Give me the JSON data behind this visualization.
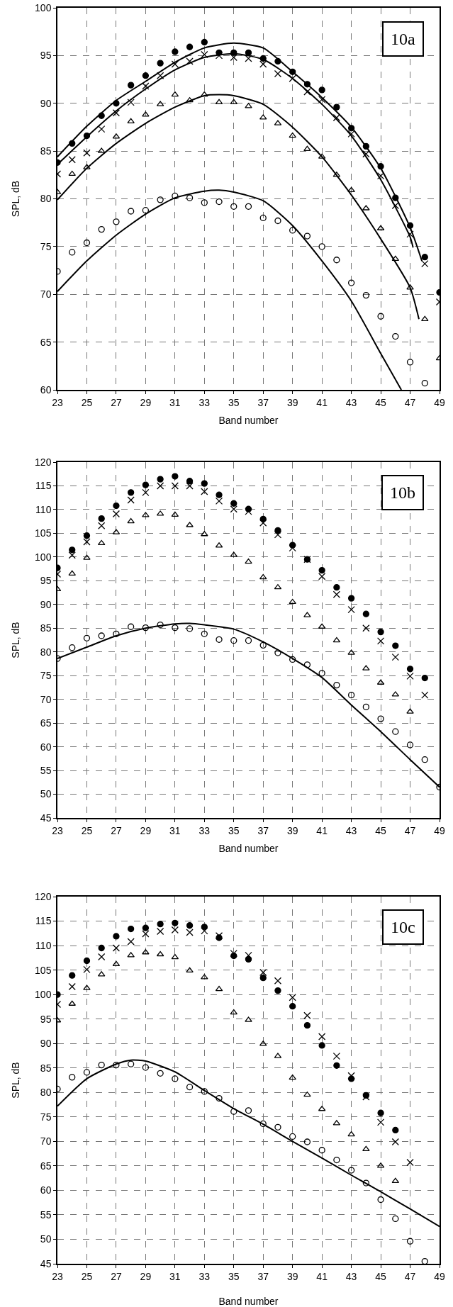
{
  "chart_data": [
    {
      "type": "scatter",
      "xlabel": "Band number",
      "ylabel": "SPL, dB",
      "annotations": [
        "10a"
      ],
      "xlim": [
        23,
        49
      ],
      "ylim": [
        60,
        100
      ],
      "xticks": [
        23,
        25,
        27,
        29,
        31,
        33,
        35,
        37,
        39,
        41,
        43,
        45,
        47,
        49
      ],
      "yticks": [
        60,
        65,
        70,
        75,
        80,
        85,
        90,
        95,
        100
      ],
      "grid": true,
      "x": [
        23,
        24,
        25,
        26,
        27,
        28,
        29,
        30,
        31,
        32,
        33,
        34,
        35,
        36,
        37,
        38,
        39,
        40,
        41,
        42,
        43,
        44,
        45,
        46,
        47,
        48,
        49
      ],
      "series": [
        {
          "type": "scatter",
          "marker": "circle",
          "color": "#000000",
          "values": [
            83.8,
            85.8,
            86.6,
            88.7,
            90.0,
            91.9,
            92.9,
            94.2,
            95.4,
            95.9,
            96.4,
            95.3,
            95.3,
            95.3,
            94.7,
            94.4,
            93.3,
            92.0,
            91.4,
            89.6,
            87.4,
            85.5,
            83.4,
            80.1,
            77.2,
            73.9,
            70.2
          ]
        },
        {
          "type": "scatter",
          "marker": "cross",
          "color": "#000000",
          "values": [
            82.6,
            84.1,
            84.8,
            87.3,
            89.0,
            90.1,
            91.8,
            92.9,
            94.1,
            94.4,
            95.1,
            95.0,
            94.8,
            94.7,
            94.1,
            93.1,
            92.6,
            91.2,
            90.4,
            88.5,
            86.8,
            84.7,
            82.4,
            79.3,
            76.3,
            73.2,
            69.2
          ]
        },
        {
          "type": "scatter",
          "marker": "triangle",
          "color": "#000000",
          "values": [
            80.7,
            82.6,
            83.3,
            85.0,
            86.5,
            88.1,
            88.8,
            89.9,
            90.9,
            90.3,
            90.9,
            90.1,
            90.1,
            89.7,
            88.5,
            87.9,
            86.6,
            85.2,
            84.4,
            82.5,
            80.9,
            79.0,
            76.9,
            73.7,
            70.7,
            67.4,
            63.3
          ]
        },
        {
          "type": "scatter",
          "marker": "circle-open",
          "color": "#000000",
          "values": [
            72.4,
            74.4,
            75.4,
            76.8,
            77.6,
            78.7,
            78.8,
            79.9,
            80.3,
            80.1,
            79.6,
            79.7,
            79.2,
            79.2,
            78.0,
            77.7,
            76.7,
            76.1,
            75.0,
            73.6,
            71.2,
            69.9,
            67.7,
            65.6,
            62.9,
            60.7,
            null
          ]
        },
        {
          "type": "line",
          "marker": "none",
          "color": "#000000",
          "x": [
            23,
            25,
            27,
            29,
            31,
            33,
            35,
            37,
            39,
            41,
            43,
            45,
            47,
            47.8
          ],
          "values": [
            84.4,
            87.6,
            90.3,
            92.3,
            94.3,
            95.8,
            96.3,
            95.8,
            93.3,
            90.6,
            87.5,
            83.2,
            77.0,
            73.5
          ]
        },
        {
          "type": "line",
          "marker": "none",
          "color": "#000000",
          "x": [
            23,
            25,
            27,
            29,
            31,
            33,
            35,
            37,
            39,
            41,
            43,
            45,
            47,
            47.2
          ],
          "values": [
            83.6,
            86.5,
            89.2,
            91.5,
            93.5,
            94.8,
            95.2,
            94.6,
            92.6,
            89.9,
            86.6,
            82.0,
            76.0,
            74.9
          ]
        },
        {
          "type": "line",
          "marker": "none",
          "color": "#000000",
          "x": [
            23,
            25,
            27,
            29,
            31,
            33,
            34,
            35,
            37,
            39,
            41,
            43,
            45,
            47,
            47.6
          ],
          "values": [
            79.9,
            83.2,
            85.8,
            87.9,
            89.6,
            90.8,
            90.9,
            90.8,
            89.9,
            87.5,
            84.4,
            80.4,
            75.8,
            70.7,
            67.4
          ]
        },
        {
          "type": "line",
          "marker": "none",
          "color": "#000000",
          "x": [
            23,
            25,
            27,
            29,
            31,
            33,
            34,
            35,
            37,
            39,
            41,
            43,
            45,
            46.4
          ],
          "values": [
            70.3,
            73.5,
            76.2,
            78.4,
            80.1,
            80.8,
            80.9,
            80.7,
            79.8,
            77.2,
            73.5,
            69.3,
            63.8,
            60.0
          ]
        }
      ]
    },
    {
      "type": "scatter",
      "xlabel": "Band number",
      "ylabel": "SPL, dB",
      "annotations": [
        "10b"
      ],
      "xlim": [
        23,
        49
      ],
      "ylim": [
        45,
        120
      ],
      "xticks": [
        23,
        25,
        27,
        29,
        31,
        33,
        35,
        37,
        39,
        41,
        43,
        45,
        47,
        49
      ],
      "yticks": [
        45,
        50,
        55,
        60,
        65,
        70,
        75,
        80,
        85,
        90,
        95,
        100,
        105,
        110,
        115,
        120
      ],
      "grid": true,
      "x": [
        23,
        24,
        25,
        26,
        27,
        28,
        29,
        30,
        31,
        32,
        33,
        34,
        35,
        36,
        37,
        38,
        39,
        40,
        41,
        42,
        43,
        44,
        45,
        46,
        47,
        48,
        49
      ],
      "series": [
        {
          "type": "scatter",
          "marker": "circle",
          "color": "#000000",
          "values": [
            97.7,
            101.5,
            104.5,
            108.1,
            110.8,
            113.6,
            115.2,
            116.4,
            117.0,
            116.0,
            115.5,
            113.1,
            111.3,
            110.1,
            108.0,
            105.6,
            102.5,
            99.5,
            97.2,
            93.6,
            91.3,
            88.0,
            84.2,
            81.3,
            76.4,
            74.5,
            null
          ]
        },
        {
          "type": "scatter",
          "marker": "cross",
          "color": "#000000",
          "values": [
            96.4,
            100.4,
            103.2,
            106.6,
            109.1,
            112.0,
            113.6,
            115.0,
            115.0,
            115.0,
            113.8,
            111.8,
            110.1,
            109.6,
            107.2,
            104.7,
            101.9,
            99.5,
            95.9,
            92.1,
            88.9,
            85.0,
            82.3,
            78.9,
            74.9,
            70.9,
            null
          ]
        },
        {
          "type": "scatter",
          "marker": "triangle",
          "color": "#000000",
          "values": [
            93.2,
            96.5,
            99.8,
            102.9,
            105.2,
            107.5,
            108.8,
            109.1,
            108.9,
            106.7,
            104.8,
            102.4,
            100.4,
            99.0,
            95.7,
            93.6,
            90.5,
            87.7,
            85.3,
            82.4,
            79.8,
            76.5,
            73.5,
            71.0,
            67.4,
            null,
            null
          ]
        },
        {
          "type": "scatter",
          "marker": "circle-open",
          "color": "#000000",
          "values": [
            78.6,
            80.9,
            82.9,
            83.4,
            83.8,
            85.3,
            85.1,
            85.7,
            85.1,
            84.9,
            83.8,
            82.6,
            82.4,
            82.4,
            81.4,
            79.8,
            78.4,
            77.3,
            75.5,
            73.0,
            70.9,
            68.4,
            65.9,
            63.2,
            60.4,
            57.3,
            51.5
          ]
        },
        {
          "type": "line",
          "marker": "none",
          "color": "#000000",
          "x": [
            23,
            25,
            27,
            29,
            31,
            32,
            33,
            35,
            37,
            39,
            41,
            43,
            45,
            47,
            49
          ],
          "values": [
            78.6,
            81.0,
            83.4,
            85.0,
            85.9,
            86.0,
            85.7,
            84.8,
            82.1,
            78.6,
            74.6,
            68.8,
            63.2,
            57.3,
            51.5
          ]
        }
      ]
    },
    {
      "type": "scatter",
      "xlabel": "Band number",
      "ylabel": "SPL, dB",
      "annotations": [
        "10c"
      ],
      "xlim": [
        23,
        49
      ],
      "ylim": [
        45,
        120
      ],
      "xticks": [
        23,
        25,
        27,
        29,
        31,
        33,
        35,
        37,
        39,
        41,
        43,
        45,
        47,
        49
      ],
      "yticks": [
        45,
        50,
        55,
        60,
        65,
        70,
        75,
        80,
        85,
        90,
        95,
        100,
        105,
        110,
        115,
        120
      ],
      "grid": true,
      "x": [
        23,
        24,
        25,
        26,
        27,
        28,
        29,
        30,
        31,
        32,
        33,
        34,
        35,
        36,
        37,
        38,
        39,
        40,
        41,
        42,
        43,
        44,
        45,
        46,
        47,
        48
      ],
      "series": [
        {
          "type": "scatter",
          "marker": "circle",
          "color": "#000000",
          "values": [
            100.0,
            103.9,
            106.9,
            109.5,
            111.9,
            113.4,
            113.6,
            114.4,
            114.6,
            114.1,
            113.8,
            111.6,
            107.9,
            107.2,
            103.4,
            100.8,
            97.6,
            93.7,
            89.6,
            85.5,
            82.8,
            79.4,
            75.8,
            72.3,
            null,
            null
          ]
        },
        {
          "type": "scatter",
          "marker": "cross",
          "color": "#000000",
          "values": [
            98.0,
            101.6,
            105.1,
            107.7,
            109.5,
            110.8,
            112.4,
            112.9,
            113.2,
            112.7,
            113.0,
            112.0,
            108.4,
            108.0,
            104.5,
            102.8,
            99.4,
            95.7,
            91.4,
            87.4,
            83.4,
            79.1,
            73.9,
            69.9,
            65.7,
            null
          ]
        },
        {
          "type": "scatter",
          "marker": "triangle",
          "color": "#000000",
          "values": [
            94.7,
            98.1,
            101.3,
            104.1,
            106.2,
            108.0,
            108.6,
            108.2,
            107.6,
            104.9,
            103.5,
            101.1,
            96.3,
            94.8,
            89.9,
            87.4,
            83.0,
            79.5,
            76.6,
            73.7,
            71.4,
            68.4,
            65.0,
            61.9,
            null,
            null
          ]
        },
        {
          "type": "scatter",
          "marker": "circle-open",
          "color": "#000000",
          "values": [
            80.7,
            83.1,
            84.1,
            85.6,
            85.6,
            85.8,
            85.1,
            83.9,
            82.8,
            81.1,
            80.2,
            78.8,
            76.1,
            76.3,
            73.6,
            72.9,
            71.0,
            69.9,
            68.2,
            66.2,
            64.1,
            61.5,
            58.1,
            54.2,
            49.6,
            45.5
          ]
        },
        {
          "type": "line",
          "marker": "none",
          "color": "#000000",
          "x": [
            23,
            25,
            27,
            28,
            29,
            31,
            33,
            35,
            37,
            39,
            41,
            43,
            45,
            47,
            49
          ],
          "values": [
            77.2,
            82.8,
            85.8,
            86.6,
            86.4,
            84.2,
            80.4,
            76.7,
            73.5,
            70.0,
            66.6,
            63.1,
            59.7,
            56.2,
            52.6
          ]
        }
      ]
    }
  ]
}
